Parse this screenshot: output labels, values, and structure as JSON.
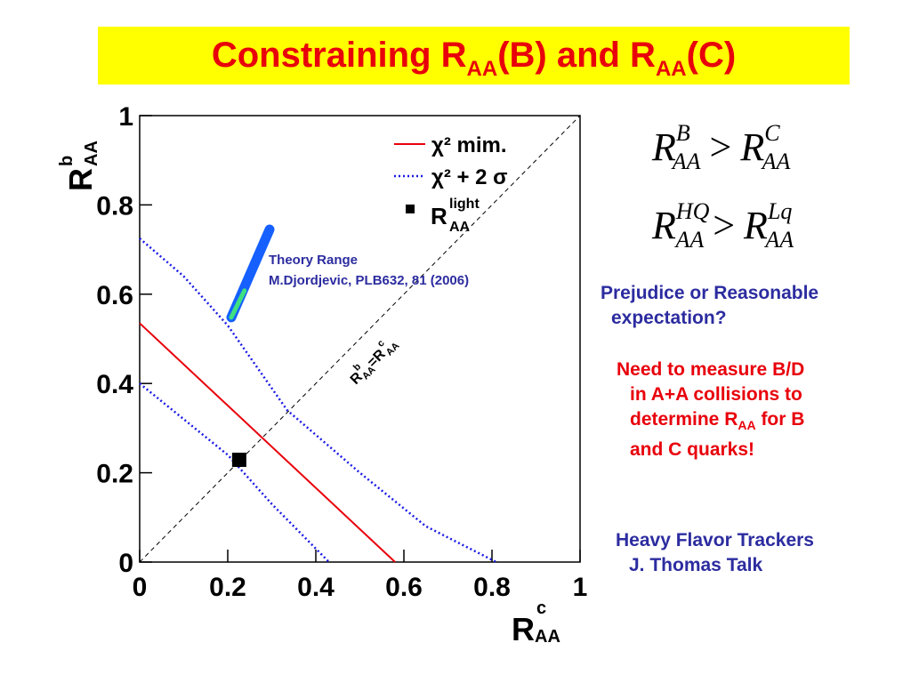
{
  "title": {
    "main": "Constraining R",
    "sub1": "AA",
    "mid": "(B) and R",
    "sub2": "AA",
    "end": "(C)"
  },
  "math": [
    {
      "lhs": "R",
      "lhs_sup": "B",
      "lhs_sub": "AA",
      "rel": ">",
      "rhs": "R",
      "rhs_sup": "C",
      "rhs_sub": "AA"
    },
    {
      "lhs": "R",
      "lhs_sup": "HQ",
      "lhs_sub": "AA",
      "rel": ">",
      "rhs": "R",
      "rhs_sup": "Lq",
      "rhs_sub": "AA"
    }
  ],
  "notes": {
    "prejudice": [
      "Prejudice or Reasonable",
      "expectation?"
    ],
    "need": [
      "Need to measure B/D",
      "in A+A collisions to",
      "determine R",
      "AA",
      " for B",
      "and C quarks!"
    ],
    "trackers": [
      "Heavy Flavor Trackers",
      "J. Thomas Talk"
    ]
  },
  "colors": {
    "title_bg": "#ffff00",
    "title_text": "#e8000b",
    "chi2_min": "#e8000b",
    "chi2_2sigma": "#1a1ae6",
    "note_blue": "#2c2ca0"
  },
  "chart_data": {
    "type": "line",
    "xlabel": "R^c_AA",
    "ylabel": "R^b_AA",
    "xlim": [
      0,
      1
    ],
    "ylim": [
      0,
      1
    ],
    "xticks": [
      "0",
      "0.2",
      "0.4",
      "0.6",
      "0.8",
      "1"
    ],
    "yticks": [
      "0",
      "0.2",
      "0.4",
      "0.6",
      "0.8",
      "1"
    ],
    "grid": false,
    "legend_position": "top-right",
    "series": [
      {
        "name": "χ² mim.",
        "style": "solid",
        "color": "#e8000b",
        "points": [
          [
            0,
            0.535
          ],
          [
            0.58,
            0
          ]
        ]
      },
      {
        "name": "χ² + 2 σ",
        "style": "dotted",
        "color": "#1a1ae6",
        "points": [
          [
            0,
            0.725
          ],
          [
            0.1,
            0.64
          ],
          [
            0.2,
            0.53
          ],
          [
            0.335,
            0.34
          ],
          [
            0.5,
            0.2
          ],
          [
            0.65,
            0.08
          ],
          [
            0.81,
            0
          ]
        ]
      },
      {
        "name": "χ² + 2 σ",
        "style": "dotted",
        "color": "#1a1ae6",
        "points": [
          [
            0,
            0.4
          ],
          [
            0.1,
            0.32
          ],
          [
            0.2,
            0.24
          ],
          [
            0.3,
            0.13
          ],
          [
            0.38,
            0.05
          ],
          [
            0.43,
            0
          ]
        ]
      },
      {
        "name": "R^light_AA",
        "style": "marker",
        "color": "#000000",
        "points": [
          [
            0.226,
            0.229
          ]
        ]
      }
    ],
    "diagonal_label": "R^b_AA=R^c_AA",
    "theory_range": {
      "label": [
        "Theory Range",
        "M.Djordjevic, PLB632, 81 (2006)"
      ],
      "from": [
        0.208,
        0.548
      ],
      "to": [
        0.295,
        0.745
      ]
    },
    "legend": [
      {
        "label": "χ² mim."
      },
      {
        "label": "χ² + 2 σ"
      },
      {
        "label": "R",
        "sup": "light",
        "sub": "AA"
      }
    ]
  }
}
